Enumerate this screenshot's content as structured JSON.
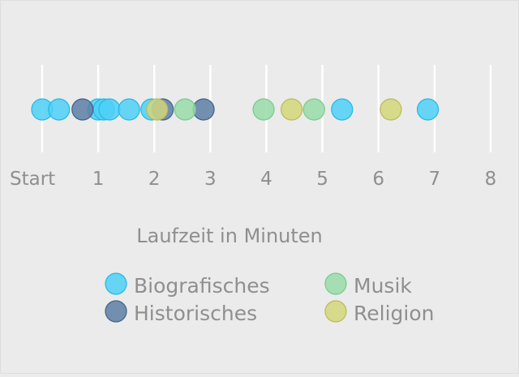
{
  "chart_data": {
    "type": "scatter",
    "title": "",
    "xlabel": "Laufzeit in Minuten",
    "ylabel": "",
    "xlim": [
      0,
      8
    ],
    "grid": true,
    "legend_position": "bottom",
    "tick_labels": [
      "Start",
      "1",
      "2",
      "3",
      "4",
      "5",
      "6",
      "7",
      "8"
    ],
    "series": [
      {
        "name": "Biografisches",
        "color": "#4dd0f7",
        "stroke": "#22b8e6",
        "x": [
          0.0,
          0.3,
          1.0,
          1.1,
          1.2,
          1.55,
          1.95,
          5.35,
          6.88
        ]
      },
      {
        "name": "Historisches",
        "color": "#5d7fa6",
        "stroke": "#3f6088",
        "x": [
          0.72,
          2.15,
          2.88
        ]
      },
      {
        "name": "Musik",
        "color": "#98dca8",
        "stroke": "#78c98a",
        "x": [
          2.55,
          3.95,
          4.85
        ]
      },
      {
        "name": "Religion",
        "color": "#d4d67a",
        "stroke": "#b9bc55",
        "x": [
          2.05,
          4.45,
          6.22
        ]
      }
    ]
  }
}
